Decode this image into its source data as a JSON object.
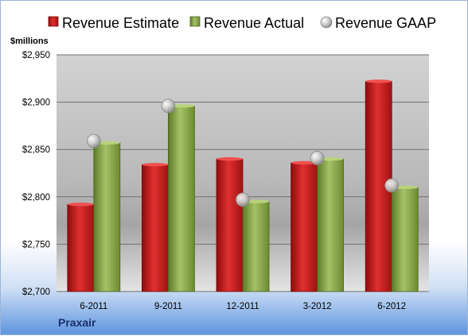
{
  "chart_data": {
    "type": "bar",
    "company": "Praxair",
    "unit_label": "$millions",
    "categories": [
      "6-2011",
      "9-2011",
      "12-2011",
      "3-2012",
      "6-2012"
    ],
    "series": [
      {
        "name": "Revenue Estimate",
        "kind": "bar",
        "color": "#d42020",
        "values": [
          2792,
          2834,
          2840,
          2836,
          2922
        ]
      },
      {
        "name": "Revenue Actual",
        "kind": "bar",
        "color": "#8fb04a",
        "values": [
          2857,
          2896,
          2795,
          2840,
          2810
        ]
      },
      {
        "name": "Revenue GAAP",
        "kind": "marker",
        "color": "#bfbfbf",
        "values": [
          2859,
          2896,
          2797,
          2841,
          2812
        ]
      }
    ],
    "ylim": [
      2700,
      2950
    ],
    "yticks": [
      2700,
      2750,
      2800,
      2850,
      2900,
      2950
    ],
    "ytick_labels": [
      "$2,700",
      "$2,750",
      "$2,800",
      "$2,850",
      "$2,900",
      "$2,950"
    ],
    "grid": true,
    "legend_position": "top"
  }
}
